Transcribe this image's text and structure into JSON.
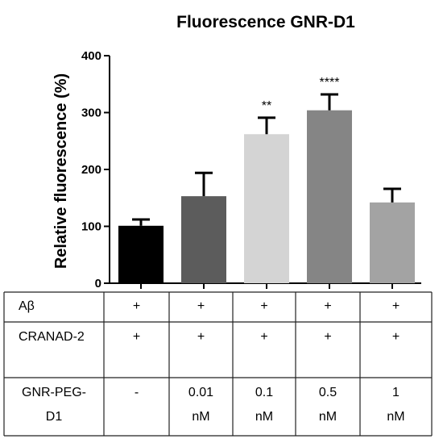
{
  "chart_data": {
    "type": "bar",
    "title": "Fluorescence GNR-D1",
    "ylabel": "Relative fluorescence (%)",
    "xlabel": "",
    "ylim": [
      0,
      400
    ],
    "yticks": [
      0,
      100,
      200,
      300,
      400
    ],
    "grid": false,
    "bars": [
      {
        "value": 101,
        "error": 11,
        "color": "#000000",
        "significance": ""
      },
      {
        "value": 153,
        "error": 41,
        "color": "#5c5c5c",
        "significance": ""
      },
      {
        "value": 262,
        "error": 29,
        "color": "#d4d4d4",
        "significance": "**"
      },
      {
        "value": 304,
        "error": 28,
        "color": "#858585",
        "significance": "****"
      },
      {
        "value": 142,
        "error": 24,
        "color": "#a3a3a3",
        "significance": ""
      }
    ],
    "condition_table": {
      "rows": [
        {
          "label": [
            "Aβ"
          ],
          "cells": [
            [
              "+"
            ],
            [
              "+"
            ],
            [
              "+"
            ],
            [
              "+"
            ],
            [
              "+"
            ]
          ]
        },
        {
          "label": [
            "CRANAD-2"
          ],
          "cells": [
            [
              "+"
            ],
            [
              "+"
            ],
            [
              "+"
            ],
            [
              "+"
            ],
            [
              "+"
            ]
          ]
        },
        {
          "label": [
            "GNR-PEG-",
            "D1"
          ],
          "cells": [
            [
              "-"
            ],
            [
              "0.01",
              "nM"
            ],
            [
              "0.1",
              "nM"
            ],
            [
              "0.5",
              "nM"
            ],
            [
              "1",
              "nM"
            ]
          ]
        }
      ]
    }
  }
}
